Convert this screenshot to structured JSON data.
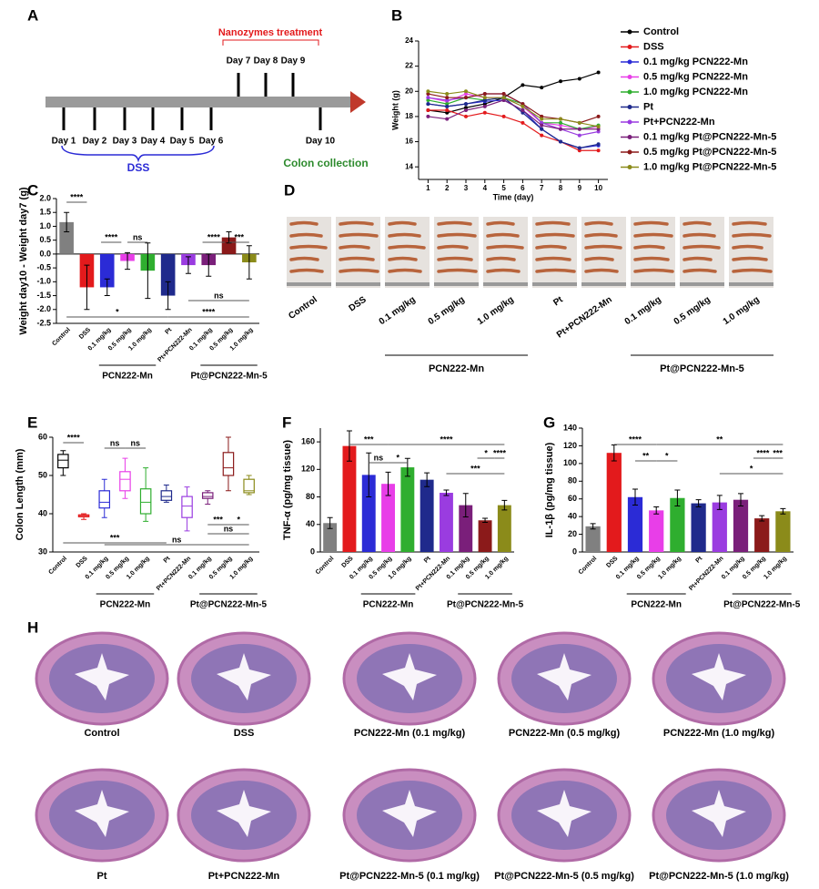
{
  "panel_labels": [
    "A",
    "B",
    "C",
    "D",
    "E",
    "F",
    "G",
    "H"
  ],
  "timeline": {
    "treatment_title": "Nanozymes treatment",
    "days": [
      "Day 1",
      "Day 2",
      "Day 3",
      "Day 4",
      "Day 5",
      "Day 6",
      "Day 7",
      "Day 8",
      "Day 9",
      "Day 10"
    ],
    "dss": "DSS",
    "collection": "Colon collection"
  },
  "chart_data": [
    {
      "type": "line",
      "xlabel": "Time (day)",
      "ylabel": "Weight (g)",
      "x": [
        1,
        2,
        3,
        4,
        5,
        6,
        7,
        8,
        9,
        10
      ],
      "xlim": [
        0.5,
        10.5
      ],
      "xticks": [
        1,
        2,
        3,
        4,
        5,
        6,
        7,
        8,
        9,
        10
      ],
      "ylim": [
        13,
        24
      ],
      "yticks": [
        14,
        16,
        18,
        20,
        22,
        24
      ],
      "series": [
        {
          "name": "Control",
          "color": "#000000",
          "values": [
            18.5,
            18.3,
            18.7,
            19.0,
            19.5,
            20.5,
            20.3,
            20.8,
            21.0,
            21.5
          ]
        },
        {
          "name": "DSS",
          "color": "#e31a1c",
          "values": [
            18.5,
            18.5,
            18.0,
            18.3,
            18.0,
            17.5,
            16.5,
            16.0,
            15.3,
            15.3
          ]
        },
        {
          "name": "0.1 mg/kg PCN222-Mn",
          "color": "#2b2bd6",
          "values": [
            19.0,
            18.8,
            19.0,
            19.2,
            19.3,
            18.5,
            17.0,
            16.0,
            15.5,
            15.7
          ]
        },
        {
          "name": "0.5 mg/kg PCN222-Mn",
          "color": "#e83ee8",
          "values": [
            19.5,
            19.2,
            19.8,
            19.5,
            19.5,
            18.8,
            17.5,
            17.3,
            17.0,
            17.2
          ]
        },
        {
          "name": "1.0 mg/kg PCN222-Mn",
          "color": "#2fae2f",
          "values": [
            19.3,
            19.0,
            19.5,
            19.3,
            19.5,
            19.0,
            17.5,
            17.5,
            17.0,
            17.3
          ]
        },
        {
          "name": "Pt",
          "color": "#1f2a8c",
          "values": [
            19.0,
            18.8,
            19.0,
            19.3,
            19.5,
            18.3,
            17.0,
            16.0,
            15.5,
            15.8
          ]
        },
        {
          "name": "Pt+PCN222-Mn",
          "color": "#9a3ce0",
          "values": [
            19.5,
            19.3,
            19.5,
            19.8,
            19.8,
            19.0,
            17.5,
            17.0,
            16.5,
            16.8
          ]
        },
        {
          "name": "0.1 mg/kg Pt@PCN222-Mn-5",
          "color": "#7a1f7a",
          "values": [
            18.0,
            17.8,
            18.5,
            18.8,
            19.3,
            18.5,
            17.3,
            17.0,
            17.0,
            17.0
          ]
        },
        {
          "name": "0.5 mg/kg Pt@PCN222-Mn-5",
          "color": "#8b1a1a",
          "values": [
            19.8,
            19.5,
            19.5,
            19.8,
            19.8,
            19.0,
            18.0,
            17.8,
            17.5,
            18.0
          ]
        },
        {
          "name": "1.0 mg/kg Pt@PCN222-Mn-5",
          "color": "#8b8b1a",
          "values": [
            20.0,
            19.8,
            20.0,
            19.5,
            19.5,
            18.8,
            17.8,
            17.8,
            17.5,
            17.2
          ]
        }
      ]
    },
    {
      "type": "bar",
      "ylabel": "Weight day10 - Weight day7 (g)",
      "categories": [
        "Control",
        "DSS",
        "0.1 mg/kg",
        "0.5 mg/kg",
        "1.0 mg/kg",
        "Pt",
        "Pt+PCN222-Mn",
        "0.1 mg/kg",
        "0.5 mg/kg",
        "1.0 mg/kg"
      ],
      "values": [
        1.15,
        -1.2,
        -1.2,
        -0.25,
        -0.6,
        -1.5,
        -0.4,
        -0.4,
        0.6,
        -0.3
      ],
      "errors": [
        0.35,
        0.8,
        0.3,
        0.3,
        1.0,
        0.5,
        0.3,
        0.4,
        0.2,
        0.6
      ],
      "colors": [
        "#808080",
        "#e31a1c",
        "#2b2bd6",
        "#e83ee8",
        "#2fae2f",
        "#1f2a8c",
        "#9a3ce0",
        "#7a1f7a",
        "#8b1a1a",
        "#8b8b1a"
      ],
      "ylim": [
        -2.5,
        2.0
      ],
      "yticks": [
        -2.5,
        {
          "value": -2,
          "label": "-2.0"
        },
        -1.5,
        {
          "value": -1,
          "label": "-1.0"
        },
        -0.5,
        {
          "value": 0,
          "label": "0.0"
        },
        0.5,
        {
          "value": 1,
          "label": "1.0"
        },
        1.5,
        {
          "value": 2,
          "label": "2.0"
        }
      ],
      "groups": [
        "PCN222-Mn",
        "Pt@PCN222-Mn-5"
      ],
      "annotations": [
        "****",
        "****",
        "ns",
        "****",
        "***",
        "*",
        "****",
        "ns"
      ]
    },
    {
      "type": "box",
      "ylabel": "Colon Length (mm)",
      "categories": [
        "Control",
        "DSS",
        "0.1 mg/kg",
        "0.5 mg/kg",
        "1.0 mg/kg",
        "Pt",
        "Pt+PCN222-Mn",
        "0.1 mg/kg",
        "0.5 mg/kg",
        "1.0 mg/kg"
      ],
      "whisker_low": [
        50,
        38.5,
        39,
        44,
        38,
        43,
        35.5,
        42.5,
        46,
        45
      ],
      "q1": [
        52,
        39.2,
        41.5,
        46,
        40,
        43.5,
        39,
        44,
        50,
        45.5
      ],
      "median": [
        54,
        39.5,
        43,
        49,
        43,
        44.5,
        42,
        44.5,
        52,
        46
      ],
      "q3": [
        55.5,
        39.7,
        46,
        51,
        46.5,
        46,
        44.5,
        45.5,
        56,
        49
      ],
      "whisker_high": [
        56.5,
        40,
        49,
        54.5,
        52,
        47.5,
        47,
        46,
        60,
        50
      ],
      "colors": [
        "#000000",
        "#e31a1c",
        "#2b2bd6",
        "#e83ee8",
        "#2fae2f",
        "#1f2a8c",
        "#9a3ce0",
        "#7a1f7a",
        "#8b1a1a",
        "#8b8b1a"
      ],
      "ylim": [
        30,
        60
      ],
      "yticks": [
        30,
        40,
        50,
        60
      ],
      "groups": [
        "PCN222-Mn",
        "Pt@PCN222-Mn-5"
      ],
      "annotations": [
        "****",
        "ns",
        "ns",
        "***",
        "ns",
        "***",
        "*",
        "ns"
      ]
    },
    {
      "type": "bar",
      "ylabel": "TNF-α (pg/mg tissue)",
      "categories": [
        "Control",
        "DSS",
        "0.1 mg/kg",
        "0.5 mg/kg",
        "1.0 mg/kg",
        "Pt",
        "Pt+PCN222-Mn",
        "0.1 mg/kg",
        "0.5 mg/kg",
        "1.0 mg/kg"
      ],
      "values": [
        42,
        154,
        112,
        99,
        123,
        105,
        86,
        68,
        46,
        68
      ],
      "errors": [
        8,
        22,
        32,
        17,
        13,
        10,
        4,
        17,
        3,
        7
      ],
      "colors": [
        "#808080",
        "#e31a1c",
        "#2b2bd6",
        "#e83ee8",
        "#2fae2f",
        "#1f2a8c",
        "#9a3ce0",
        "#7a1f7a",
        "#8b1a1a",
        "#8b8b1a"
      ],
      "ylim": [
        0,
        180
      ],
      "yticks": [
        0,
        40,
        80,
        120,
        160
      ],
      "groups": [
        "PCN222-Mn",
        "Pt@PCN222-Mn-5"
      ],
      "annotations": [
        "***",
        "ns",
        "*",
        "****",
        "*",
        "****",
        "***"
      ]
    },
    {
      "type": "bar",
      "ylabel": "IL-1β (pg/mg tissue)",
      "categories": [
        "Control",
        "DSS",
        "0.1 mg/kg",
        "0.5 mg/kg",
        "1.0 mg/kg",
        "Pt",
        "Pt+PCN222-Mn",
        "0.1 mg/kg",
        "0.5 mg/kg",
        "1.0 mg/kg"
      ],
      "values": [
        29,
        112,
        62,
        47,
        61,
        55,
        56,
        59,
        38,
        46
      ],
      "errors": [
        3,
        9,
        9,
        4,
        9,
        4,
        8,
        7,
        3,
        3
      ],
      "colors": [
        "#808080",
        "#e31a1c",
        "#2b2bd6",
        "#e83ee8",
        "#2fae2f",
        "#1f2a8c",
        "#9a3ce0",
        "#7a1f7a",
        "#8b1a1a",
        "#8b8b1a"
      ],
      "ylim": [
        0,
        140
      ],
      "yticks": [
        0,
        20,
        40,
        60,
        80,
        100,
        120,
        140
      ],
      "groups": [
        "PCN222-Mn",
        "Pt@PCN222-Mn-5"
      ],
      "annotations": [
        "****",
        "**",
        "**",
        "*",
        "****",
        "***",
        "*"
      ]
    }
  ],
  "photos": {
    "labels": [
      "Control",
      "DSS",
      "0.1 mg/kg",
      "0.5 mg/kg",
      "1.0 mg/kg",
      "Pt",
      "Pt+PCN222-Mn",
      "0.1 mg/kg",
      "0.5 mg/kg",
      "1.0 mg/kg"
    ],
    "groups": [
      "PCN222-Mn",
      "Pt@PCN222-Mn-5"
    ]
  },
  "histology": {
    "labels": [
      "Control",
      "DSS",
      "PCN222-Mn (0.1 mg/kg)",
      "PCN222-Mn (0.5 mg/kg)",
      "PCN222-Mn (1.0 mg/kg)",
      "Pt",
      "Pt+PCN222-Mn",
      "Pt@PCN222-Mn-5 (0.1 mg/kg)",
      "Pt@PCN222-Mn-5 (0.5 mg/kg)",
      "Pt@PCN222-Mn-5 (1.0 mg/kg)"
    ]
  }
}
